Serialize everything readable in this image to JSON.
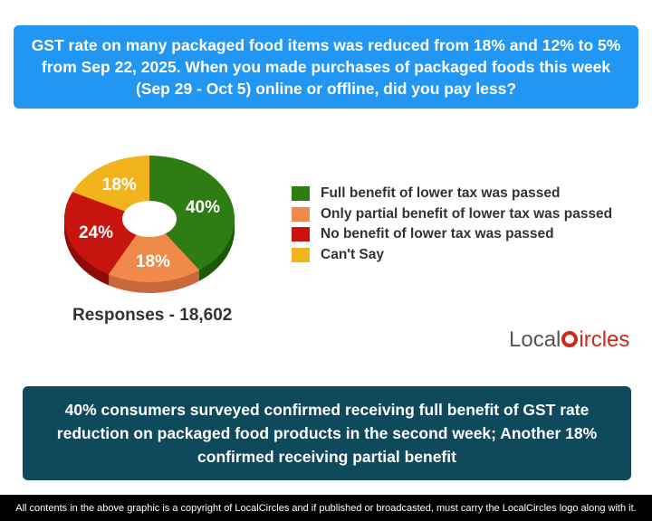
{
  "question": "GST rate on many packaged food items was reduced from 18% and 12% to 5% from Sep 22, 2025. When you made purchases of packaged foods this week (Sep 29 - Oct 5) online or offline, did you pay less?",
  "chart_data": {
    "type": "pie",
    "style": "3d-donut",
    "legend_position": "right",
    "categories": [
      "Full benefit of lower tax was passed",
      "Only partial benefit of lower tax was passed",
      "No benefit of lower tax was passed",
      "Can't Say"
    ],
    "values": [
      40,
      18,
      24,
      18
    ],
    "labels": [
      "40%",
      "18%",
      "24%",
      "18%"
    ],
    "colors": [
      "#2e7d12",
      "#f08a4b",
      "#c8140f",
      "#f2b41c"
    ],
    "side_colors": [
      "#1d5a08",
      "#c9683a",
      "#8f0c08",
      "#c68f10"
    ]
  },
  "responses": "Responses - 18,602",
  "logo": {
    "text_left": "Local",
    "text_right": "ircles"
  },
  "finding": "40% consumers surveyed confirmed receiving full benefit of GST rate reduction on packaged food products in the second week; Another 18% confirmed receiving partial benefit",
  "footer": "All contents in the above graphic is a copyright of LocalCircles and if published or broadcasted, must carry the LocalCircles logo along with it."
}
